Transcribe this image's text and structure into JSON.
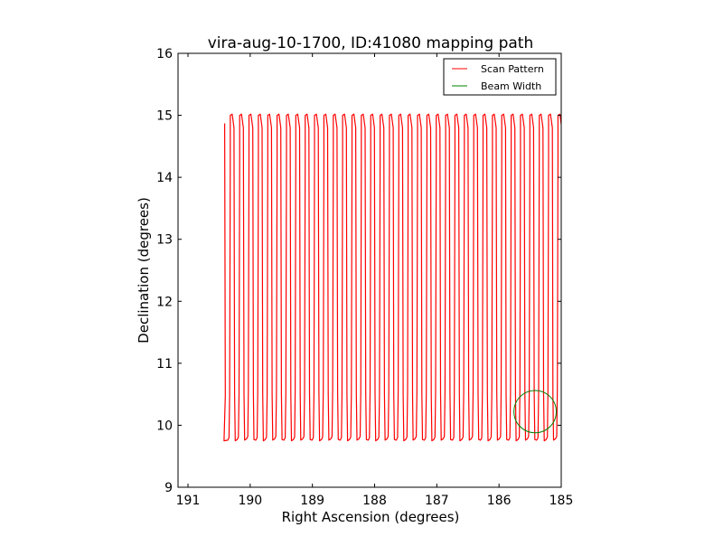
{
  "chart_data": {
    "type": "line",
    "title": "vira-aug-10-1700, ID:41080 mapping path",
    "xlabel": "Right Ascension (degrees)",
    "ylabel": "Declination (degrees)",
    "xlim": [
      191.16,
      185.0
    ],
    "ylim": [
      9,
      16
    ],
    "xticks": [
      "191",
      "190",
      "189",
      "188",
      "187",
      "186",
      "185"
    ],
    "yticks": [
      "9",
      "10",
      "11",
      "12",
      "13",
      "14",
      "15",
      "16"
    ],
    "grid": false,
    "legend": {
      "placement": "top-right",
      "entries": [
        "Scan Pattern",
        "Beam Width"
      ]
    },
    "series": [
      {
        "name": "Scan Pattern",
        "color": "#ff0000",
        "kind": "raster-scan",
        "start_point": [
          190.41,
          14.87
        ],
        "first_column_ra": 190.33,
        "column_spacing_deg": 0.1505,
        "dec_min": 9.75,
        "dec_max": 15.02,
        "ra_end": 185.0
      },
      {
        "name": "Beam Width",
        "color": "#008000",
        "kind": "circle",
        "center": [
          185.42,
          10.22
        ],
        "radius_deg": 0.34
      }
    ]
  }
}
